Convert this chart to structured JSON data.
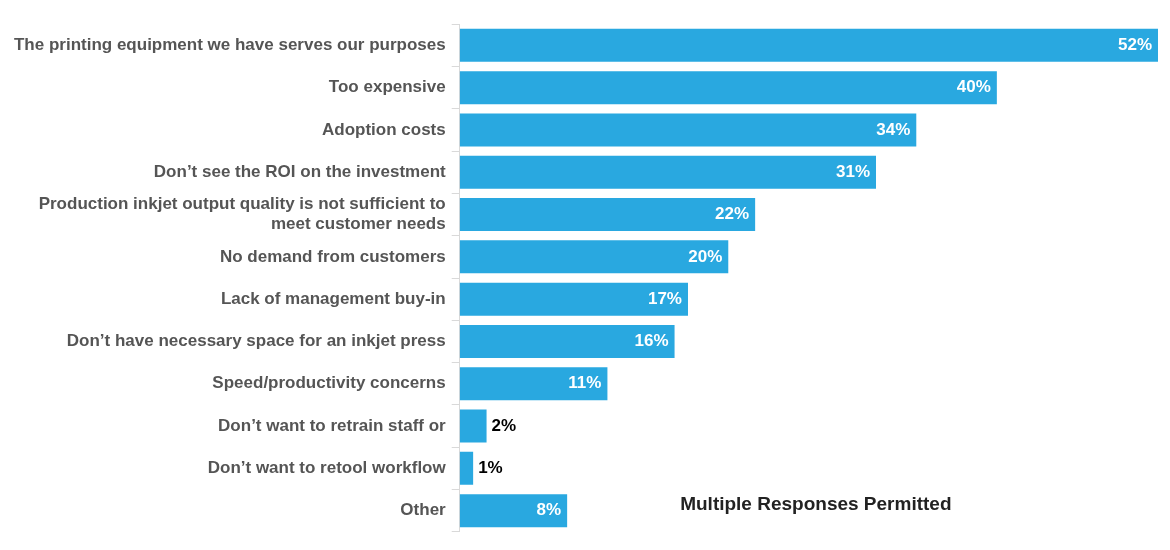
{
  "chart_data": {
    "type": "bar",
    "orientation": "horizontal",
    "categories": [
      "The printing equipment we have serves our purposes",
      "Too expensive",
      "Adoption costs",
      "Don’t see the ROI on the investment",
      "Production inkjet output quality is not sufficient to meet customer needs",
      "No demand from customers",
      "Lack of management buy-in",
      "Don’t have necessary space for an inkjet press",
      "Speed/productivity concerns",
      "Don’t want to retrain staff or",
      "Don’t want to retool workflow",
      "Other"
    ],
    "values": [
      52,
      40,
      34,
      31,
      22,
      20,
      17,
      16,
      11,
      2,
      1,
      8
    ],
    "value_labels": [
      "52%",
      "40%",
      "34%",
      "31%",
      "22%",
      "20%",
      "17%",
      "16%",
      "11%",
      "2%",
      "1%",
      "8%"
    ],
    "color": "#29a8e0",
    "xlim": [
      0,
      52
    ],
    "tick_labels": "y",
    "annotations": [
      "Multiple Responses Permitted"
    ]
  }
}
